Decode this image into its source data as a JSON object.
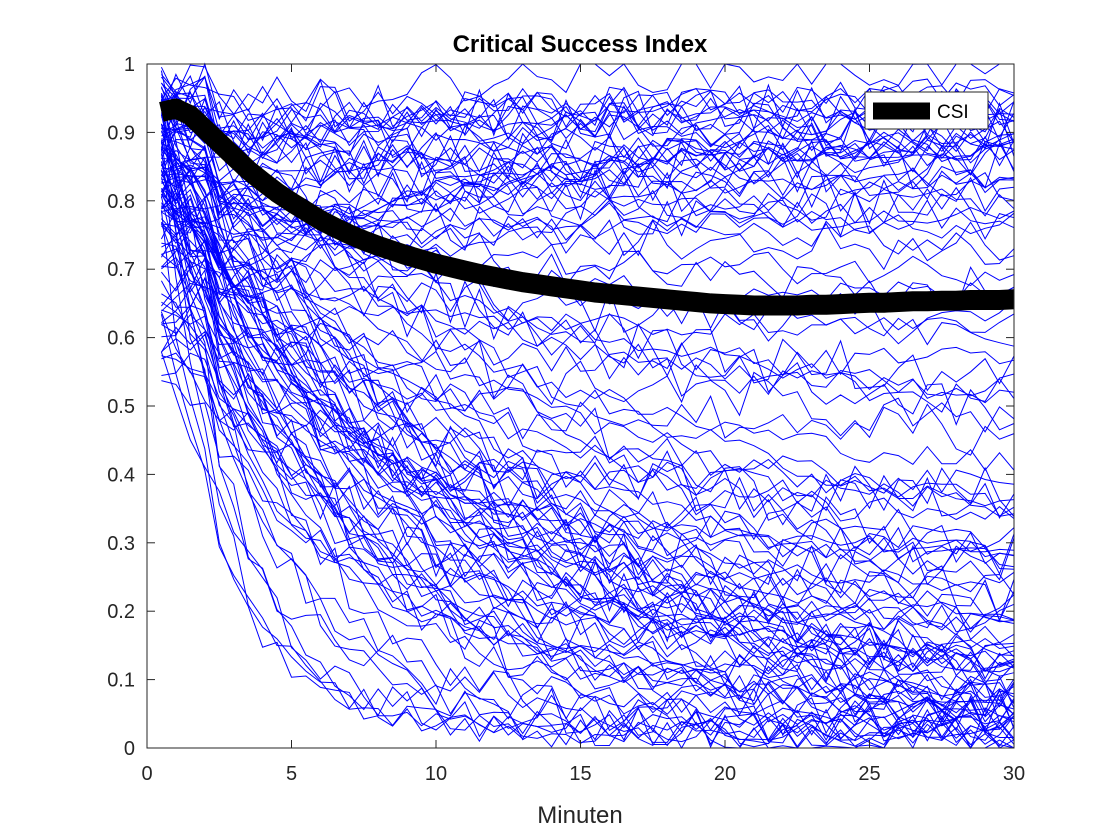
{
  "chart_data": {
    "type": "line",
    "title": "Critical Success Index",
    "xlabel": "Minuten",
    "ylabel": "",
    "xlim": [
      0,
      30
    ],
    "ylim": [
      0,
      1
    ],
    "xticks": [
      "0",
      "5",
      "10",
      "15",
      "20",
      "25",
      "30"
    ],
    "yticks": [
      "0",
      "0.1",
      "0.2",
      "0.3",
      "0.4",
      "0.5",
      "0.6",
      "0.7",
      "0.8",
      "0.9",
      "1"
    ],
    "grid": false,
    "legend_position": "top-right",
    "x": [
      0.5,
      1,
      1.5,
      2,
      2.5,
      3,
      3.5,
      4,
      4.5,
      5,
      5.5,
      6,
      6.5,
      7,
      7.5,
      8,
      8.5,
      9,
      9.5,
      10,
      10.5,
      11,
      11.5,
      12,
      12.5,
      13,
      13.5,
      14,
      14.5,
      15,
      15.5,
      16,
      16.5,
      17,
      17.5,
      18,
      18.5,
      19,
      19.5,
      20,
      20.5,
      21,
      21.5,
      22,
      22.5,
      23,
      23.5,
      24,
      24.5,
      25,
      25.5,
      26,
      26.5,
      27,
      27.5,
      28,
      28.5,
      29,
      29.5,
      30
    ],
    "series": [
      {
        "name": "CSI",
        "color": "#000000",
        "values": [
          0.93,
          0.935,
          0.925,
          0.905,
          0.885,
          0.865,
          0.845,
          0.828,
          0.812,
          0.798,
          0.785,
          0.772,
          0.761,
          0.751,
          0.742,
          0.734,
          0.727,
          0.72,
          0.714,
          0.708,
          0.703,
          0.698,
          0.693,
          0.689,
          0.685,
          0.681,
          0.678,
          0.675,
          0.672,
          0.669,
          0.666,
          0.664,
          0.662,
          0.66,
          0.658,
          0.656,
          0.654,
          0.652,
          0.65,
          0.649,
          0.648,
          0.647,
          0.647,
          0.647,
          0.647,
          0.648,
          0.648,
          0.649,
          0.65,
          0.651,
          0.651,
          0.652,
          0.653,
          0.653,
          0.654,
          0.654,
          0.655,
          0.655,
          0.655,
          0.656
        ]
      }
    ],
    "background_lines": {
      "color": "#0000ff",
      "count": 120,
      "description_values": "individual per-event CSI curves, each starting near 0.5–1.0 at 0.5 min and decaying to 0–1.0 by 30 min"
    }
  }
}
